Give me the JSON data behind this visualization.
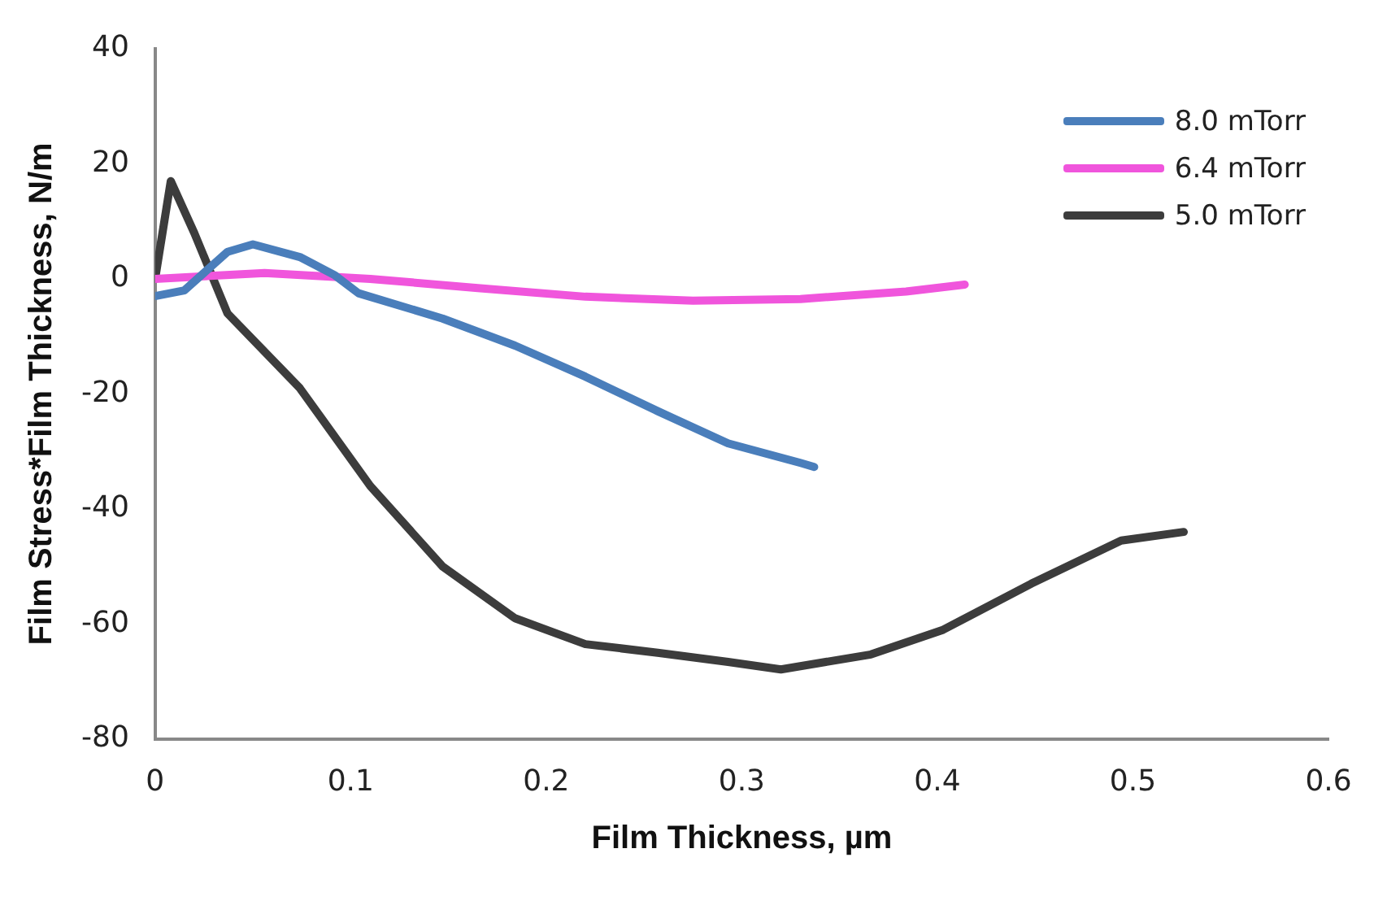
{
  "chart_data": {
    "type": "line",
    "xlabel": "Film Thickness, µm",
    "ylabel": "Film Stress*Film Thickness, N/m",
    "xlim": [
      0,
      0.6
    ],
    "xticks": [
      0,
      0.1,
      0.2,
      0.3,
      0.4,
      0.5,
      0.6
    ],
    "ylim": [
      -80,
      40
    ],
    "yticks": [
      -80,
      -60,
      -40,
      -20,
      0,
      20,
      40
    ],
    "grid": false,
    "legend": "top right",
    "marker": "none",
    "line_style": "solid",
    "series": [
      {
        "name": "8.0 mTorr",
        "color": "#4a7ebb",
        "x": [
          0,
          0.015,
          0.037,
          0.05,
          0.074,
          0.092,
          0.104,
          0.147,
          0.184,
          0.22,
          0.257,
          0.293,
          0.33,
          0.337
        ],
        "values": [
          -3,
          -2,
          4.7,
          6,
          3.8,
          0.6,
          -2.5,
          -6.9,
          -11.6,
          -17,
          -23,
          -28.6,
          -32,
          -32.7
        ]
      },
      {
        "name": "6.4 mTorr",
        "color": "#f055dc",
        "x": [
          0,
          0.056,
          0.11,
          0.165,
          0.22,
          0.275,
          0.33,
          0.384,
          0.414
        ],
        "values": [
          0,
          1,
          0,
          -1.6,
          -3.1,
          -3.8,
          -3.5,
          -2.2,
          -1
        ]
      },
      {
        "name": "5.0 mTorr",
        "color": "#3c3c3c",
        "x": [
          0,
          0.008,
          0.02,
          0.037,
          0.074,
          0.11,
          0.147,
          0.184,
          0.22,
          0.257,
          0.293,
          0.32,
          0.366,
          0.403,
          0.448,
          0.494,
          0.526
        ],
        "values": [
          0,
          17,
          8,
          -6,
          -19,
          -36,
          -50,
          -59,
          -63.5,
          -65,
          -66.6,
          -67.9,
          -65.3,
          -61,
          -53,
          -45.5,
          -44
        ]
      }
    ]
  }
}
